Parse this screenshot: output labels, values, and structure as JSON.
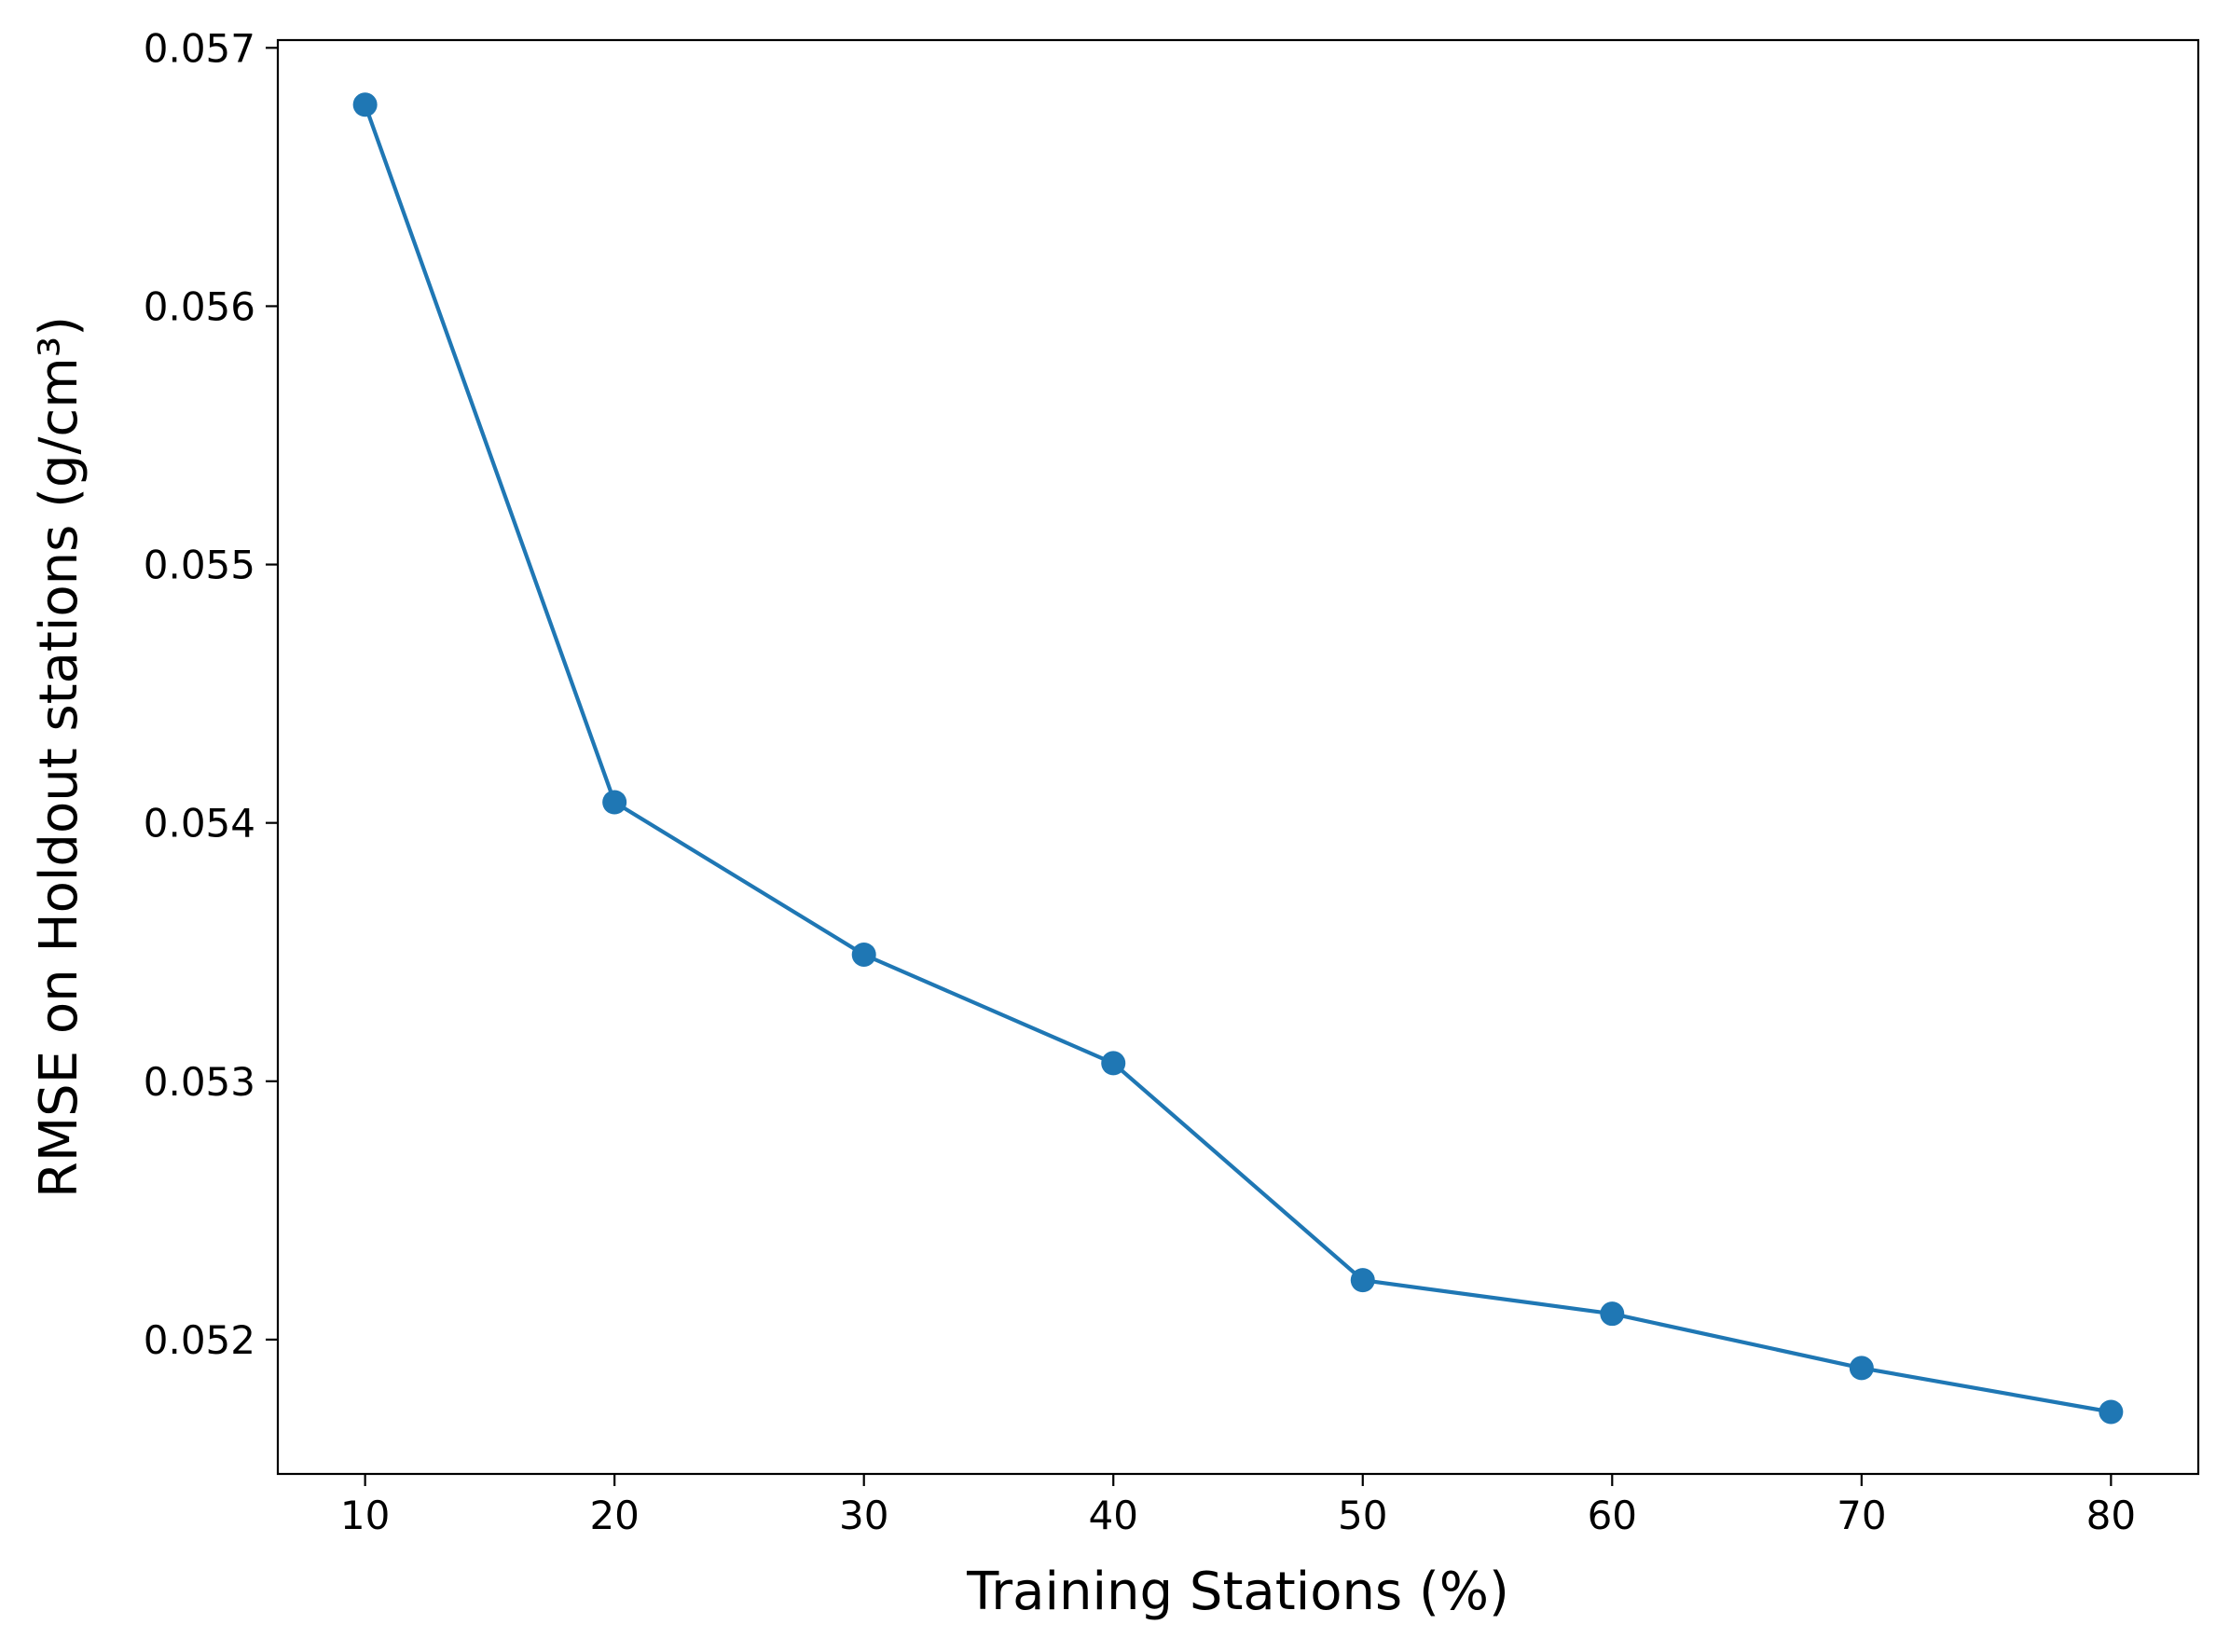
{
  "chart_data": {
    "type": "line",
    "title": "",
    "xlabel": "Training Stations (%)",
    "ylabel": "RMSE on Holdout stations (g/cm³)",
    "x": [
      10,
      20,
      30,
      40,
      50,
      60,
      70,
      80
    ],
    "series": [
      {
        "values": [
          0.05678,
          0.05408,
          0.05349,
          0.05307,
          0.05223,
          0.0521,
          0.05189,
          0.05172
        ],
        "color": "#1f77b4",
        "marker": "circle"
      }
    ],
    "xlim": [
      6.5,
      83.5
    ],
    "ylim": [
      0.05148,
      0.05703
    ],
    "xticks": [
      10,
      20,
      30,
      40,
      50,
      60,
      70,
      80
    ],
    "xtick_labels": [
      "10",
      "20",
      "30",
      "40",
      "50",
      "60",
      "70",
      "80"
    ],
    "yticks": [
      0.052,
      0.053,
      0.054,
      0.055,
      0.056,
      0.057
    ],
    "ytick_labels": [
      "0.052",
      "0.053",
      "0.054",
      "0.055",
      "0.056",
      "0.057"
    ],
    "grid": false,
    "legend": "none"
  }
}
